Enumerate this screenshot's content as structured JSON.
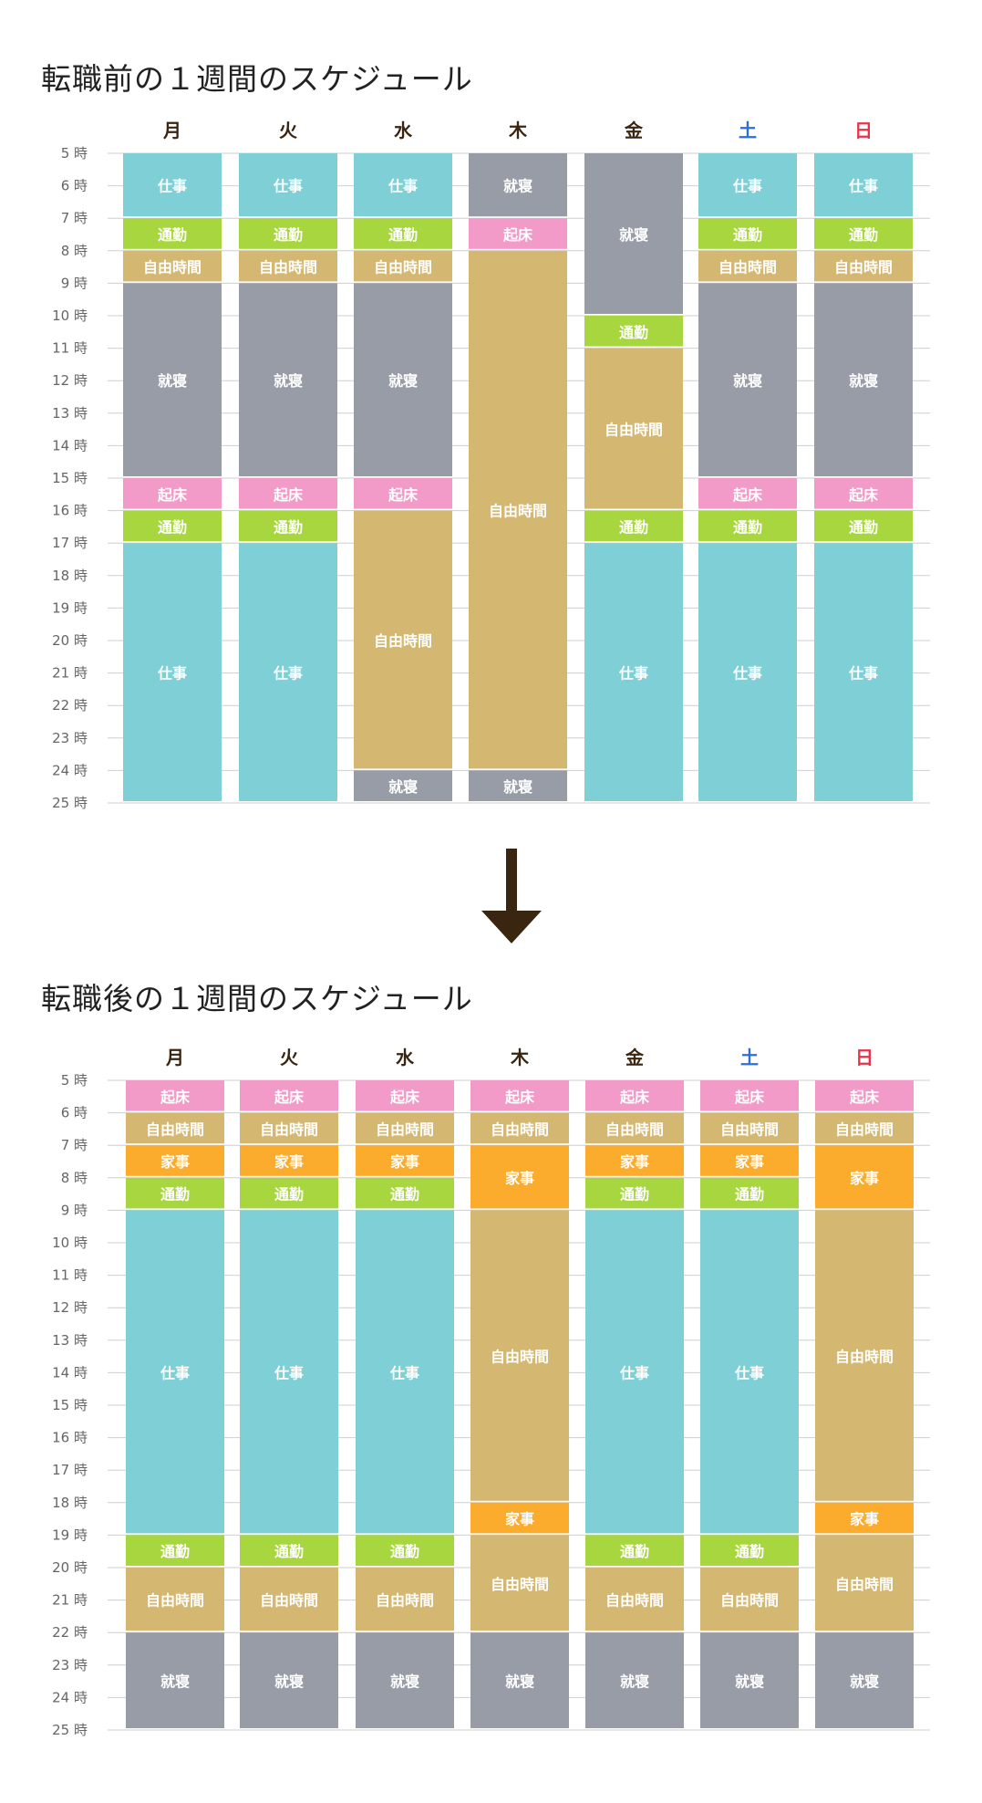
{
  "colors": {
    "仕事": "#7ecfd6",
    "通勤": "#a8d63f",
    "自由時間": "#d4b872",
    "就寝": "#979ca6",
    "起床": "#f29ac8",
    "家事": "#fbac2d",
    "weekday_text": "#3a2510",
    "saturday_text": "#2a6fdb",
    "sunday_text": "#e8334a",
    "arrow": "#3a2510"
  },
  "hour_suffix": "時",
  "days": [
    "月",
    "火",
    "水",
    "木",
    "金",
    "土",
    "日"
  ],
  "chart_data": [
    {
      "type": "table",
      "title": "転職前の１週間のスケジュール",
      "ylim": [
        5,
        25
      ],
      "hours": [
        5,
        6,
        7,
        8,
        9,
        10,
        11,
        12,
        13,
        14,
        15,
        16,
        17,
        18,
        19,
        20,
        21,
        22,
        23,
        24,
        25
      ],
      "schedule": [
        [
          {
            "start": 5,
            "end": 7,
            "activity": "仕事"
          },
          {
            "start": 7,
            "end": 8,
            "activity": "通勤"
          },
          {
            "start": 8,
            "end": 9,
            "activity": "自由時間"
          },
          {
            "start": 9,
            "end": 15,
            "activity": "就寝"
          },
          {
            "start": 15,
            "end": 16,
            "activity": "起床"
          },
          {
            "start": 16,
            "end": 17,
            "activity": "通勤"
          },
          {
            "start": 17,
            "end": 25,
            "activity": "仕事"
          }
        ],
        [
          {
            "start": 5,
            "end": 7,
            "activity": "仕事"
          },
          {
            "start": 7,
            "end": 8,
            "activity": "通勤"
          },
          {
            "start": 8,
            "end": 9,
            "activity": "自由時間"
          },
          {
            "start": 9,
            "end": 15,
            "activity": "就寝"
          },
          {
            "start": 15,
            "end": 16,
            "activity": "起床"
          },
          {
            "start": 16,
            "end": 17,
            "activity": "通勤"
          },
          {
            "start": 17,
            "end": 25,
            "activity": "仕事"
          }
        ],
        [
          {
            "start": 5,
            "end": 7,
            "activity": "仕事"
          },
          {
            "start": 7,
            "end": 8,
            "activity": "通勤"
          },
          {
            "start": 8,
            "end": 9,
            "activity": "自由時間"
          },
          {
            "start": 9,
            "end": 15,
            "activity": "就寝"
          },
          {
            "start": 15,
            "end": 16,
            "activity": "起床"
          },
          {
            "start": 16,
            "end": 24,
            "activity": "自由時間"
          },
          {
            "start": 24,
            "end": 25,
            "activity": "就寝"
          }
        ],
        [
          {
            "start": 5,
            "end": 7,
            "activity": "就寝"
          },
          {
            "start": 7,
            "end": 8,
            "activity": "起床"
          },
          {
            "start": 8,
            "end": 24,
            "activity": "自由時間"
          },
          {
            "start": 24,
            "end": 25,
            "activity": "就寝"
          }
        ],
        [
          {
            "start": 5,
            "end": 10,
            "activity": "就寝"
          },
          {
            "start": 10,
            "end": 11,
            "activity": "通勤"
          },
          {
            "start": 11,
            "end": 16,
            "activity": "自由時間"
          },
          {
            "start": 16,
            "end": 17,
            "activity": "通勤"
          },
          {
            "start": 17,
            "end": 25,
            "activity": "仕事"
          }
        ],
        [
          {
            "start": 5,
            "end": 7,
            "activity": "仕事"
          },
          {
            "start": 7,
            "end": 8,
            "activity": "通勤"
          },
          {
            "start": 8,
            "end": 9,
            "activity": "自由時間"
          },
          {
            "start": 9,
            "end": 15,
            "activity": "就寝"
          },
          {
            "start": 15,
            "end": 16,
            "activity": "起床"
          },
          {
            "start": 16,
            "end": 17,
            "activity": "通勤"
          },
          {
            "start": 17,
            "end": 25,
            "activity": "仕事"
          }
        ],
        [
          {
            "start": 5,
            "end": 7,
            "activity": "仕事"
          },
          {
            "start": 7,
            "end": 8,
            "activity": "通勤"
          },
          {
            "start": 8,
            "end": 9,
            "activity": "自由時間"
          },
          {
            "start": 9,
            "end": 15,
            "activity": "就寝"
          },
          {
            "start": 15,
            "end": 16,
            "activity": "起床"
          },
          {
            "start": 16,
            "end": 17,
            "activity": "通勤"
          },
          {
            "start": 17,
            "end": 25,
            "activity": "仕事"
          }
        ]
      ]
    },
    {
      "type": "table",
      "title": "転職後の１週間のスケジュール",
      "ylim": [
        5,
        25
      ],
      "hours": [
        5,
        6,
        7,
        8,
        9,
        10,
        11,
        12,
        13,
        14,
        15,
        16,
        17,
        18,
        19,
        20,
        21,
        22,
        23,
        24,
        25
      ],
      "schedule": [
        [
          {
            "start": 5,
            "end": 6,
            "activity": "起床"
          },
          {
            "start": 6,
            "end": 7,
            "activity": "自由時間"
          },
          {
            "start": 7,
            "end": 8,
            "activity": "家事"
          },
          {
            "start": 8,
            "end": 9,
            "activity": "通勤"
          },
          {
            "start": 9,
            "end": 19,
            "activity": "仕事"
          },
          {
            "start": 19,
            "end": 20,
            "activity": "通勤"
          },
          {
            "start": 20,
            "end": 22,
            "activity": "自由時間"
          },
          {
            "start": 22,
            "end": 25,
            "activity": "就寝"
          }
        ],
        [
          {
            "start": 5,
            "end": 6,
            "activity": "起床"
          },
          {
            "start": 6,
            "end": 7,
            "activity": "自由時間"
          },
          {
            "start": 7,
            "end": 8,
            "activity": "家事"
          },
          {
            "start": 8,
            "end": 9,
            "activity": "通勤"
          },
          {
            "start": 9,
            "end": 19,
            "activity": "仕事"
          },
          {
            "start": 19,
            "end": 20,
            "activity": "通勤"
          },
          {
            "start": 20,
            "end": 22,
            "activity": "自由時間"
          },
          {
            "start": 22,
            "end": 25,
            "activity": "就寝"
          }
        ],
        [
          {
            "start": 5,
            "end": 6,
            "activity": "起床"
          },
          {
            "start": 6,
            "end": 7,
            "activity": "自由時間"
          },
          {
            "start": 7,
            "end": 8,
            "activity": "家事"
          },
          {
            "start": 8,
            "end": 9,
            "activity": "通勤"
          },
          {
            "start": 9,
            "end": 19,
            "activity": "仕事"
          },
          {
            "start": 19,
            "end": 20,
            "activity": "通勤"
          },
          {
            "start": 20,
            "end": 22,
            "activity": "自由時間"
          },
          {
            "start": 22,
            "end": 25,
            "activity": "就寝"
          }
        ],
        [
          {
            "start": 5,
            "end": 6,
            "activity": "起床"
          },
          {
            "start": 6,
            "end": 7,
            "activity": "自由時間"
          },
          {
            "start": 7,
            "end": 9,
            "activity": "家事"
          },
          {
            "start": 9,
            "end": 18,
            "activity": "自由時間"
          },
          {
            "start": 18,
            "end": 19,
            "activity": "家事"
          },
          {
            "start": 19,
            "end": 22,
            "activity": "自由時間"
          },
          {
            "start": 22,
            "end": 25,
            "activity": "就寝"
          }
        ],
        [
          {
            "start": 5,
            "end": 6,
            "activity": "起床"
          },
          {
            "start": 6,
            "end": 7,
            "activity": "自由時間"
          },
          {
            "start": 7,
            "end": 8,
            "activity": "家事"
          },
          {
            "start": 8,
            "end": 9,
            "activity": "通勤"
          },
          {
            "start": 9,
            "end": 19,
            "activity": "仕事"
          },
          {
            "start": 19,
            "end": 20,
            "activity": "通勤"
          },
          {
            "start": 20,
            "end": 22,
            "activity": "自由時間"
          },
          {
            "start": 22,
            "end": 25,
            "activity": "就寝"
          }
        ],
        [
          {
            "start": 5,
            "end": 6,
            "activity": "起床"
          },
          {
            "start": 6,
            "end": 7,
            "activity": "自由時間"
          },
          {
            "start": 7,
            "end": 8,
            "activity": "家事"
          },
          {
            "start": 8,
            "end": 9,
            "activity": "通勤"
          },
          {
            "start": 9,
            "end": 19,
            "activity": "仕事"
          },
          {
            "start": 19,
            "end": 20,
            "activity": "通勤"
          },
          {
            "start": 20,
            "end": 22,
            "activity": "自由時間"
          },
          {
            "start": 22,
            "end": 25,
            "activity": "就寝"
          }
        ],
        [
          {
            "start": 5,
            "end": 6,
            "activity": "起床"
          },
          {
            "start": 6,
            "end": 7,
            "activity": "自由時間"
          },
          {
            "start": 7,
            "end": 9,
            "activity": "家事"
          },
          {
            "start": 9,
            "end": 18,
            "activity": "自由時間"
          },
          {
            "start": 18,
            "end": 19,
            "activity": "家事"
          },
          {
            "start": 19,
            "end": 22,
            "activity": "自由時間"
          },
          {
            "start": 22,
            "end": 25,
            "activity": "就寝"
          }
        ]
      ]
    }
  ]
}
